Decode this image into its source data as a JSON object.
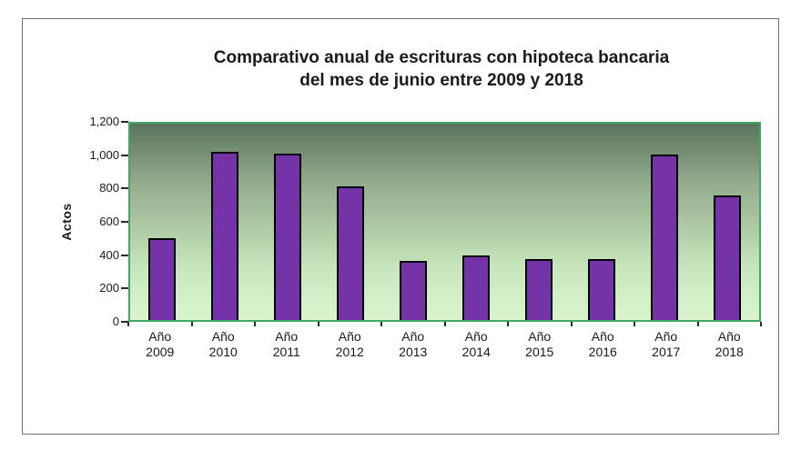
{
  "window": {
    "background_color": "#FFFFFF",
    "frame_border_color": "#707070"
  },
  "chart_data": {
    "type": "bar",
    "title": "Comparativo anual de escrituras con hipoteca bancaria del mes de junio entre 2009 y 2018",
    "title_lines": [
      "Comparativo anual de escrituras con hipoteca bancaria",
      "del mes de junio entre 2009 y 2018"
    ],
    "ylabel": "Actos",
    "xlabel": "",
    "categories": [
      "Año 2009",
      "Año 2010",
      "Año 2011",
      "Año 2012",
      "Año 2013",
      "Año 2014",
      "Año 2015",
      "Año 2016",
      "Año 2017",
      "Año 2018"
    ],
    "values": [
      500,
      1030,
      1015,
      815,
      360,
      395,
      375,
      375,
      1010,
      760
    ],
    "ylim": [
      0,
      1200
    ],
    "ytick_step": 200,
    "ytick_labels": [
      "0",
      "200",
      "400",
      "600",
      "800",
      "1,000",
      "1,200"
    ],
    "grid": false,
    "legend": "none",
    "styles": {
      "bar_fill": "#7434A8",
      "bar_border": "#000000",
      "plot_border": "#3FA768",
      "plot_gradient_top": "#5A745C",
      "plot_gradient_bottom": "#DAF5CE",
      "text_color": "#1A1A1A"
    }
  }
}
